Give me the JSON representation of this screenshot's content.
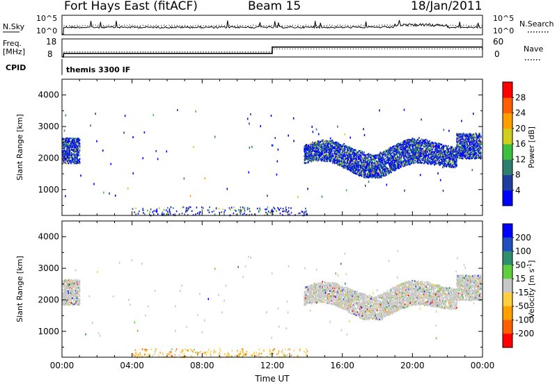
{
  "header": {
    "radar": "Fort Hays East (fitACF)",
    "beam": "Beam 15",
    "date": "18/Jan/2011"
  },
  "status_panels": {
    "nsky_label": "N.Sky",
    "nsearch_label": "N.Search",
    "noise_ticks": [
      "10^5",
      "10^0"
    ],
    "freq_label_line1": "Freq.",
    "freq_label_line2": "[MHz]",
    "freq_ticks": [
      "18",
      "8"
    ],
    "nave_label": "Nave",
    "nave_ticks": [
      "60",
      "0"
    ],
    "cpid_label": "CPID",
    "cpid_text": "themis 3300 IF",
    "freq_step": {
      "before": 10.0,
      "after": 13.5,
      "switch_hour": 12.0
    },
    "nave": {
      "before": 17,
      "after": 27
    }
  },
  "chart_data": [
    {
      "type": "heatmap",
      "name": "power",
      "xlabel": "",
      "ylabel": "Slant Range [km]",
      "xlim": [
        0,
        24
      ],
      "ylim": [
        180,
        4500
      ],
      "y_ticks": [
        "1000",
        "2000",
        "3000",
        "4000"
      ],
      "colorbar": {
        "label": "Power [dB]",
        "ticks": [
          "4",
          "8",
          "12",
          "16",
          "20",
          "24",
          "28"
        ],
        "colors": [
          "#0000ff",
          "#1f3fa0",
          "#2f7f6f",
          "#3fbf3f",
          "#cfcf1f",
          "#ff9f00",
          "#ff5f00",
          "#ff0000"
        ]
      },
      "echo_regions": [
        {
          "start_hour": 0.0,
          "end_hour": 1.0,
          "range_lo": 1850,
          "range_hi": 2650,
          "typical_power_db": 10
        },
        {
          "start_hour": 13.8,
          "end_hour": 22.5,
          "range_lo": 1400,
          "range_hi": 2700,
          "typical_power_db": 8
        },
        {
          "start_hour": 22.5,
          "end_hour": 23.9,
          "range_lo": 2000,
          "range_hi": 2800,
          "typical_power_db": 10
        },
        {
          "start_hour": 4.0,
          "end_hour": 14.0,
          "range_lo": 200,
          "range_hi": 450,
          "typical_power_db": 6
        }
      ]
    },
    {
      "type": "heatmap",
      "name": "velocity",
      "xlabel": "Time UT",
      "ylabel": "Slant Range [km]",
      "xlim": [
        0,
        24
      ],
      "ylim": [
        180,
        4500
      ],
      "x_ticks": [
        "00:00",
        "04:00",
        "08:00",
        "12:00",
        "16:00",
        "20:00",
        "00:00"
      ],
      "y_ticks": [
        "1000",
        "2000",
        "3000",
        "4000"
      ],
      "colorbar": {
        "label": "Velocity [m s^-1]",
        "ticks": [
          "200",
          "100",
          "50",
          "15",
          "-15",
          "-50",
          "-100",
          "-200"
        ],
        "colors": [
          "#0000ff",
          "#1f4fbf",
          "#2f8f6f",
          "#5fcf3f",
          "#c8c8c8",
          "#ffcf3f",
          "#ff9f00",
          "#ff5f00",
          "#ff0000"
        ]
      },
      "echo_regions": [
        {
          "start_hour": 0.0,
          "end_hour": 1.0,
          "range_lo": 1850,
          "range_hi": 2650,
          "typical_velocity": 0
        },
        {
          "start_hour": 13.8,
          "end_hour": 22.5,
          "range_lo": 1400,
          "range_hi": 2700,
          "typical_velocity": 0
        },
        {
          "start_hour": 22.5,
          "end_hour": 23.9,
          "range_lo": 2000,
          "range_hi": 2800,
          "typical_velocity": 0
        },
        {
          "start_hour": 4.0,
          "end_hour": 14.0,
          "range_lo": 200,
          "range_hi": 450,
          "typical_velocity": -40
        }
      ]
    }
  ]
}
